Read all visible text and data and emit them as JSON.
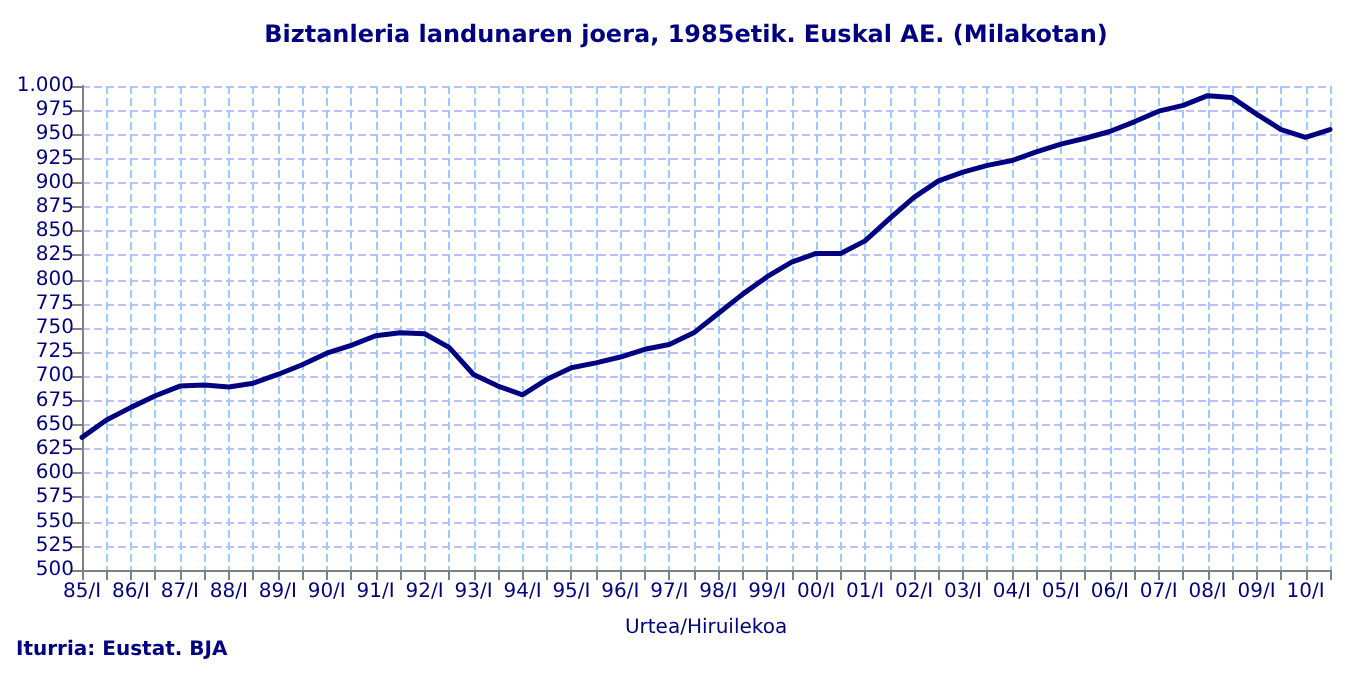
{
  "chart_data": {
    "type": "line",
    "title": "Biztanleria landunaren joera, 1985etik. Euskal AE. (Milakotan)",
    "xlabel": "Urtea/Hiruilekoa",
    "annotations": [
      "Iturria: Eustat. BJA"
    ],
    "categories": [
      "85/I",
      null,
      "86/I",
      null,
      "87/I",
      null,
      "88/I",
      null,
      "89/I",
      null,
      "90/I",
      null,
      "91/I",
      null,
      "92/I",
      null,
      "93/I",
      null,
      "94/I",
      null,
      "95/I",
      null,
      "96/I",
      null,
      "97/I",
      null,
      "98/I",
      null,
      "99/I",
      null,
      "00/I",
      null,
      "01/I",
      null,
      "02/I",
      null,
      "03/I",
      null,
      "04/I",
      null,
      "05/I",
      null,
      "06/I",
      null,
      "07/I",
      null,
      "08/I",
      null,
      "09/I",
      null,
      "10/I",
      null
    ],
    "series": [
      {
        "color": "#000080",
        "values": [
          637,
          655,
          668,
          680,
          690,
          691,
          689,
          693,
          702,
          712,
          724,
          732,
          742,
          745,
          744,
          730,
          702,
          690,
          681,
          697,
          709,
          714,
          720,
          728,
          733,
          745,
          765,
          785,
          803,
          818,
          827,
          827,
          840,
          863,
          885,
          902,
          911,
          918,
          923,
          932,
          940,
          946,
          953,
          963,
          974,
          980,
          990,
          988,
          971,
          955,
          947,
          955
        ]
      }
    ],
    "ylim": [
      500,
      1000
    ],
    "yticks": [
      500,
      525,
      550,
      575,
      600,
      625,
      650,
      675,
      700,
      725,
      750,
      775,
      800,
      825,
      850,
      875,
      900,
      925,
      950,
      975,
      {
        "value": 1000,
        "label": "1.000"
      }
    ],
    "grid": true,
    "marker": "none",
    "line_style": "solid"
  }
}
